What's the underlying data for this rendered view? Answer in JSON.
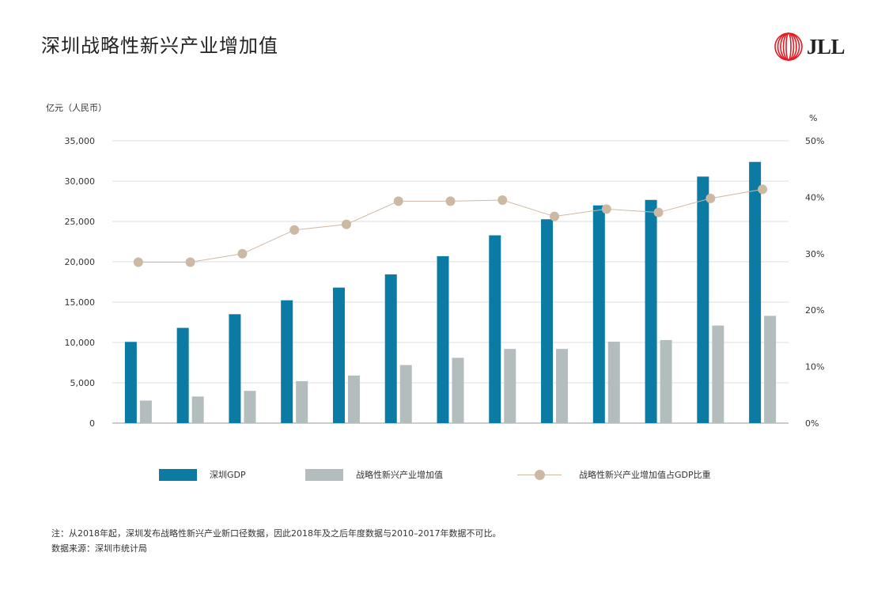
{
  "title": "深圳战略性新兴产业增加值",
  "logo": {
    "text": "JLL",
    "color": "#e31b23"
  },
  "colors": {
    "gdp": "#0b7ba3",
    "sei": "#b4bdbd",
    "ratio": "#cdb8a4",
    "grid": "#dddddd",
    "axis": "#999999"
  },
  "chart_data": {
    "type": "bar",
    "ylabel": "亿元（人民币）",
    "y2label": "%",
    "ylim": [
      0,
      35000
    ],
    "y2lim": [
      0,
      50
    ],
    "yticks": [
      "0",
      "5,000",
      "10,000",
      "15,000",
      "20,000",
      "25,000",
      "30,000",
      "35,000"
    ],
    "y2ticks": [
      "0%",
      "10%",
      "20%",
      "30%",
      "40%",
      "50%"
    ],
    "categories": [
      "",
      "",
      "",
      "",
      "",
      "",
      "",
      "",
      "",
      "",
      "",
      "",
      ""
    ],
    "series": [
      {
        "name": "深圳GDP",
        "kind": "bar",
        "values": [
          10070,
          11810,
          13500,
          15230,
          16800,
          18440,
          20690,
          23280,
          25270,
          26990,
          27670,
          30560,
          32380
        ]
      },
      {
        "name": "战略性新兴产业增加值",
        "kind": "bar",
        "values": [
          2800,
          3300,
          4000,
          5200,
          5900,
          7200,
          8100,
          9200,
          9200,
          10100,
          10300,
          12100,
          13300
        ]
      },
      {
        "name": "战略性新兴产业增加值占GDP比重",
        "kind": "line",
        "axis": "right",
        "values": [
          28.5,
          28.5,
          30.0,
          34.2,
          35.2,
          39.3,
          39.3,
          39.5,
          36.6,
          37.9,
          37.3,
          39.8,
          41.4
        ]
      }
    ]
  },
  "legend": {
    "gdp": "深圳GDP",
    "sei": "战略性新兴产业增加值",
    "ratio": "战略性新兴产业增加值占GDP比重"
  },
  "notes": {
    "note": "注：从2018年起，深圳发布战略性新兴产业新口径数据，因此2018年及之后年度数据与2010–2017年数据不可比。",
    "source": "数据来源：深圳市统计局"
  }
}
